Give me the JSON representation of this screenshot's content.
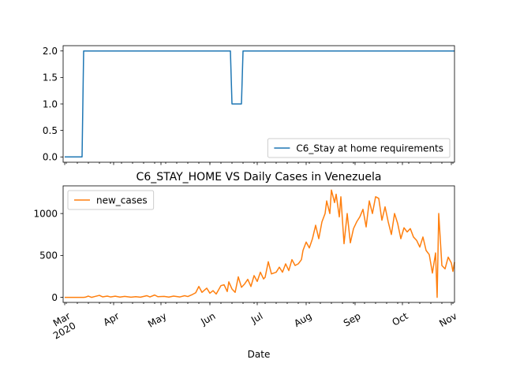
{
  "chart_data": [
    {
      "type": "line",
      "title": "",
      "xlabel": "",
      "ylabel": "",
      "ylim": [
        -0.1,
        2.1
      ],
      "yticks": [
        0.0,
        0.5,
        1.0,
        1.5,
        2.0
      ],
      "ytick_labels": [
        "0.0",
        "0.5",
        "1.0",
        "1.5",
        "2.0"
      ],
      "xlim": [
        "2020-02-29",
        "2020-11-03"
      ],
      "grid": false,
      "legend": "lower right",
      "series": [
        {
          "name": "C6_Stay at home requirements",
          "color": "#1f77b4",
          "points": [
            [
              "2020-03-01",
              0
            ],
            [
              "2020-03-11",
              0
            ],
            [
              "2020-03-12",
              0
            ],
            [
              "2020-03-13",
              2
            ],
            [
              "2020-06-13",
              2
            ],
            [
              "2020-06-14",
              2
            ],
            [
              "2020-06-15",
              1
            ],
            [
              "2020-06-20",
              1
            ],
            [
              "2020-06-21",
              1
            ],
            [
              "2020-06-22",
              2
            ],
            [
              "2020-11-03",
              2
            ]
          ]
        }
      ]
    },
    {
      "type": "line",
      "title": "C6_STAY_HOME VS Daily Cases in Venezuela",
      "xlabel": "Date",
      "ylabel": "",
      "ylim": [
        -60,
        1330
      ],
      "yticks": [
        0,
        500,
        1000
      ],
      "ytick_labels": [
        "0",
        "500",
        "1000"
      ],
      "xlim": [
        "2020-02-29",
        "2020-11-03"
      ],
      "grid": false,
      "legend": "upper left",
      "xtick_labels": [
        {
          "date": "2020-03-01",
          "label": "Mar",
          "sublabel": "2020"
        },
        {
          "date": "2020-04-01",
          "label": "Apr"
        },
        {
          "date": "2020-05-01",
          "label": "May"
        },
        {
          "date": "2020-06-01",
          "label": "Jun"
        },
        {
          "date": "2020-07-01",
          "label": "Jul"
        },
        {
          "date": "2020-08-01",
          "label": "Aug"
        },
        {
          "date": "2020-09-01",
          "label": "Sep"
        },
        {
          "date": "2020-10-01",
          "label": "Oct"
        },
        {
          "date": "2020-11-01",
          "label": "Nov"
        }
      ],
      "series": [
        {
          "name": "new_cases",
          "color": "#ff7f0e",
          "points": [
            [
              "2020-03-01",
              0
            ],
            [
              "2020-03-13",
              0
            ],
            [
              "2020-03-14",
              2
            ],
            [
              "2020-03-16",
              15
            ],
            [
              "2020-03-18",
              0
            ],
            [
              "2020-03-20",
              10
            ],
            [
              "2020-03-23",
              24
            ],
            [
              "2020-03-25",
              6
            ],
            [
              "2020-03-28",
              15
            ],
            [
              "2020-03-30",
              5
            ],
            [
              "2020-04-02",
              14
            ],
            [
              "2020-04-05",
              3
            ],
            [
              "2020-04-08",
              12
            ],
            [
              "2020-04-12",
              2
            ],
            [
              "2020-04-15",
              8
            ],
            [
              "2020-04-18",
              2
            ],
            [
              "2020-04-22",
              20
            ],
            [
              "2020-04-24",
              5
            ],
            [
              "2020-04-27",
              28
            ],
            [
              "2020-04-29",
              8
            ],
            [
              "2020-05-03",
              12
            ],
            [
              "2020-05-06",
              3
            ],
            [
              "2020-05-09",
              15
            ],
            [
              "2020-05-13",
              5
            ],
            [
              "2020-05-16",
              20
            ],
            [
              "2020-05-18",
              10
            ],
            [
              "2020-05-21",
              35
            ],
            [
              "2020-05-23",
              55
            ],
            [
              "2020-05-25",
              130
            ],
            [
              "2020-05-27",
              60
            ],
            [
              "2020-05-30",
              110
            ],
            [
              "2020-06-01",
              50
            ],
            [
              "2020-06-03",
              80
            ],
            [
              "2020-06-05",
              40
            ],
            [
              "2020-06-08",
              140
            ],
            [
              "2020-06-10",
              150
            ],
            [
              "2020-06-12",
              70
            ],
            [
              "2020-06-13",
              185
            ],
            [
              "2020-06-15",
              100
            ],
            [
              "2020-06-17",
              60
            ],
            [
              "2020-06-19",
              245
            ],
            [
              "2020-06-21",
              120
            ],
            [
              "2020-06-23",
              160
            ],
            [
              "2020-06-25",
              215
            ],
            [
              "2020-06-27",
              130
            ],
            [
              "2020-06-29",
              260
            ],
            [
              "2020-07-01",
              190
            ],
            [
              "2020-07-03",
              300
            ],
            [
              "2020-07-05",
              220
            ],
            [
              "2020-07-06",
              240
            ],
            [
              "2020-07-08",
              425
            ],
            [
              "2020-07-10",
              280
            ],
            [
              "2020-07-13",
              300
            ],
            [
              "2020-07-15",
              360
            ],
            [
              "2020-07-17",
              300
            ],
            [
              "2020-07-19",
              400
            ],
            [
              "2020-07-21",
              320
            ],
            [
              "2020-07-23",
              450
            ],
            [
              "2020-07-25",
              380
            ],
            [
              "2020-07-27",
              400
            ],
            [
              "2020-07-29",
              450
            ],
            [
              "2020-07-30",
              560
            ],
            [
              "2020-08-01",
              660
            ],
            [
              "2020-08-03",
              590
            ],
            [
              "2020-08-05",
              700
            ],
            [
              "2020-08-07",
              860
            ],
            [
              "2020-08-09",
              700
            ],
            [
              "2020-08-11",
              900
            ],
            [
              "2020-08-13",
              1000
            ],
            [
              "2020-08-14",
              1150
            ],
            [
              "2020-08-16",
              1000
            ],
            [
              "2020-08-17",
              1280
            ],
            [
              "2020-08-19",
              1130
            ],
            [
              "2020-08-20",
              1230
            ],
            [
              "2020-08-22",
              960
            ],
            [
              "2020-08-23",
              1200
            ],
            [
              "2020-08-25",
              640
            ],
            [
              "2020-08-27",
              1000
            ],
            [
              "2020-08-29",
              650
            ],
            [
              "2020-08-31",
              820
            ],
            [
              "2020-09-02",
              900
            ],
            [
              "2020-09-04",
              960
            ],
            [
              "2020-09-06",
              1050
            ],
            [
              "2020-09-08",
              840
            ],
            [
              "2020-09-10",
              1150
            ],
            [
              "2020-09-12",
              1000
            ],
            [
              "2020-09-14",
              1200
            ],
            [
              "2020-09-16",
              1180
            ],
            [
              "2020-09-18",
              920
            ],
            [
              "2020-09-20",
              1080
            ],
            [
              "2020-09-22",
              900
            ],
            [
              "2020-09-24",
              750
            ],
            [
              "2020-09-26",
              1000
            ],
            [
              "2020-09-28",
              880
            ],
            [
              "2020-09-30",
              700
            ],
            [
              "2020-10-02",
              830
            ],
            [
              "2020-10-04",
              780
            ],
            [
              "2020-10-06",
              820
            ],
            [
              "2020-10-08",
              720
            ],
            [
              "2020-10-10",
              680
            ],
            [
              "2020-10-12",
              600
            ],
            [
              "2020-10-14",
              720
            ],
            [
              "2020-10-16",
              560
            ],
            [
              "2020-10-18",
              510
            ],
            [
              "2020-10-20",
              290
            ],
            [
              "2020-10-22",
              530
            ],
            [
              "2020-10-23",
              0
            ],
            [
              "2020-10-24",
              1000
            ],
            [
              "2020-10-26",
              380
            ],
            [
              "2020-10-28",
              340
            ],
            [
              "2020-10-30",
              480
            ],
            [
              "2020-11-01",
              410
            ],
            [
              "2020-11-02",
              310
            ],
            [
              "2020-11-03",
              420
            ]
          ]
        }
      ]
    }
  ]
}
